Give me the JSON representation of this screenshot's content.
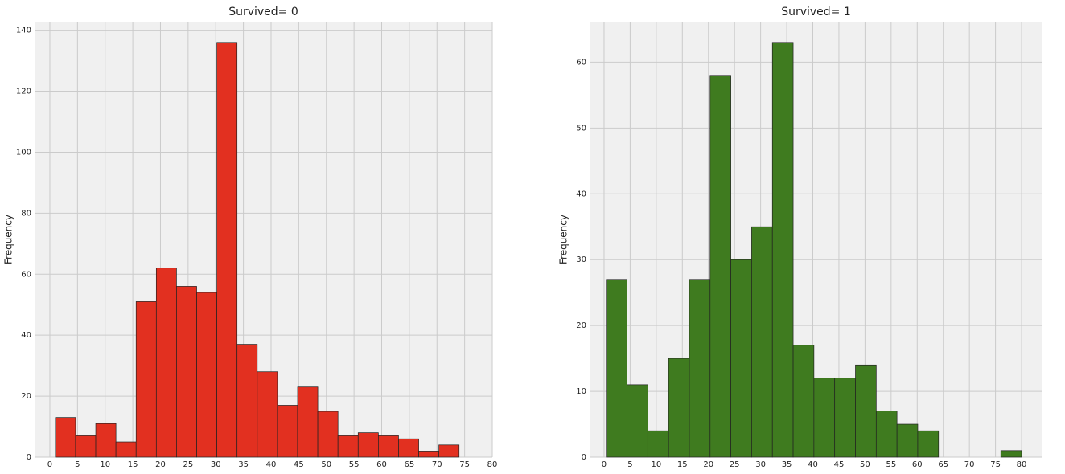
{
  "chart_data": [
    {
      "type": "histogram",
      "title": "Survived= 0",
      "ylabel": "Frequency",
      "color": "#e23020",
      "grid": true,
      "bins": [
        1,
        4.65,
        8.3,
        11.95,
        15.6,
        19.25,
        22.9,
        26.55,
        30.2,
        33.85,
        37.5,
        41.15,
        44.8,
        48.45,
        52.1,
        55.75,
        59.4,
        63.05,
        66.7,
        70.35,
        74
      ],
      "values": [
        13,
        7,
        11,
        5,
        51,
        62,
        56,
        54,
        136,
        37,
        28,
        17,
        23,
        15,
        7,
        8,
        7,
        6,
        2,
        4
      ],
      "xlim": [
        -2.76,
        80
      ],
      "ylim": [
        0,
        142.8
      ],
      "xticks": [
        0,
        5,
        10,
        15,
        20,
        25,
        30,
        35,
        40,
        45,
        50,
        55,
        60,
        65,
        70,
        75,
        80
      ],
      "yticks": [
        0,
        20,
        40,
        60,
        80,
        100,
        120,
        140
      ]
    },
    {
      "type": "histogram",
      "title": "Survived= 1",
      "ylabel": "Frequency",
      "color": "#3f7b1f",
      "grid": true,
      "bins": [
        0.42,
        4.399,
        8.378,
        12.357,
        16.336,
        20.315,
        24.294,
        28.273,
        32.252,
        36.231,
        40.21,
        44.189,
        48.168,
        52.147,
        56.126,
        60.105,
        64.084,
        68.063,
        72.042,
        76.021,
        80
      ],
      "values": [
        27,
        11,
        4,
        15,
        27,
        58,
        30,
        35,
        63,
        17,
        12,
        12,
        14,
        7,
        5,
        4,
        0,
        0,
        0,
        1
      ],
      "xlim": [
        -2.77,
        84
      ],
      "ylim": [
        0,
        66.15
      ],
      "xticks": [
        0,
        5,
        10,
        15,
        20,
        25,
        30,
        35,
        40,
        45,
        50,
        55,
        60,
        65,
        70,
        75,
        80
      ],
      "yticks": [
        0,
        10,
        20,
        30,
        40,
        50,
        60
      ]
    }
  ]
}
